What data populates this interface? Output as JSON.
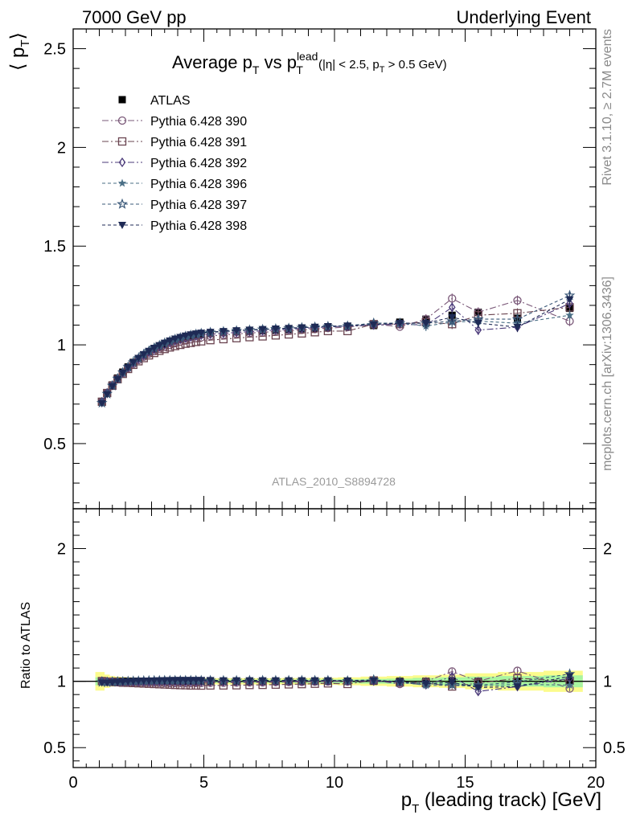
{
  "header": {
    "left": "7000 GeV pp",
    "right": "Underlying Event"
  },
  "side_labels": {
    "rivet": "Rivet 3.1.10, ≥ 2.7M events",
    "mcplots": "mcplots.cern.ch [arXiv:1306.3436]"
  },
  "chart_data": {
    "type": "scatter",
    "title": {
      "main": "Average p",
      "sub_T": "T",
      "vs": " vs p",
      "sup_lead": "lead",
      "sub_T2": "T",
      "cuts_a": "(|η| < 2.5, p",
      "cuts_T": "T",
      "cuts_b": " > 0.5 GeV)"
    },
    "analysis_label": "ATLAS_2010_S8894728",
    "ylabel": {
      "left": "⟨ p",
      "sub": "T",
      "right": "⟩"
    },
    "ratio_ylabel": "Ratio to ATLAS",
    "xlabel": {
      "p": "p",
      "sub": "T",
      "rest": " (leading track) [GeV]"
    },
    "xlim": [
      0,
      20
    ],
    "ylim_main": [
      0.17,
      2.6
    ],
    "ylim_ratio": [
      0.35,
      2.3
    ],
    "main_yticks": [
      "0.5",
      "1",
      "1.5",
      "2",
      "2.5"
    ],
    "ratio_yticks": [
      "0.5",
      "1",
      "2"
    ],
    "xticks": [
      "0",
      "5",
      "10",
      "15",
      "20"
    ],
    "x": [
      1.1,
      1.3,
      1.5,
      1.7,
      1.9,
      2.1,
      2.3,
      2.5,
      2.7,
      2.9,
      3.1,
      3.3,
      3.5,
      3.7,
      3.9,
      4.1,
      4.3,
      4.5,
      4.7,
      4.9,
      5.25,
      5.75,
      6.25,
      6.75,
      7.25,
      7.75,
      8.25,
      8.75,
      9.25,
      9.75,
      10.5,
      11.5,
      12.5,
      13.5,
      14.5,
      15.5,
      17.0,
      19.0
    ],
    "series": [
      {
        "name": "ATLAS",
        "color": "#000000",
        "marker": "filled-square",
        "dash": "none",
        "values": [
          0.711,
          0.758,
          0.797,
          0.832,
          0.862,
          0.888,
          0.911,
          0.931,
          0.949,
          0.965,
          0.979,
          0.992,
          1.003,
          1.013,
          1.022,
          1.03,
          1.037,
          1.043,
          1.048,
          1.052,
          1.057,
          1.062,
          1.066,
          1.069,
          1.072,
          1.075,
          1.078,
          1.081,
          1.084,
          1.087,
          1.092,
          1.098,
          1.115,
          1.13,
          1.15,
          1.165,
          1.135,
          1.185
        ]
      },
      {
        "name": "Pythia 6.428 390",
        "color": "#7a5878",
        "marker": "open-circle",
        "dash": "8,3,2,3",
        "values": [
          0.712,
          0.757,
          0.794,
          0.828,
          0.856,
          0.882,
          0.904,
          0.923,
          0.94,
          0.955,
          0.968,
          0.98,
          0.99,
          0.999,
          1.008,
          1.016,
          1.022,
          1.028,
          1.034,
          1.038,
          1.045,
          1.05,
          1.055,
          1.06,
          1.063,
          1.068,
          1.072,
          1.076,
          1.08,
          1.085,
          1.09,
          1.105,
          1.092,
          1.13,
          1.235,
          1.165,
          1.225,
          1.12
        ]
      },
      {
        "name": "Pythia 6.428 391",
        "color": "#6a4450",
        "marker": "open-square",
        "dash": "8,3,2,3",
        "values": [
          0.712,
          0.756,
          0.793,
          0.826,
          0.853,
          0.878,
          0.899,
          0.917,
          0.933,
          0.947,
          0.959,
          0.97,
          0.979,
          0.987,
          0.994,
          1.0,
          1.006,
          1.01,
          1.015,
          1.018,
          1.024,
          1.029,
          1.034,
          1.039,
          1.043,
          1.048,
          1.053,
          1.058,
          1.064,
          1.07,
          1.07,
          1.105,
          1.105,
          1.115,
          1.105,
          1.15,
          1.16,
          1.19
        ]
      },
      {
        "name": "Pythia 6.428 392",
        "color": "#4b3a7a",
        "marker": "open-diamond",
        "dash": "8,3,2,3",
        "values": [
          0.712,
          0.757,
          0.796,
          0.83,
          0.86,
          0.886,
          0.909,
          0.929,
          0.947,
          0.963,
          0.977,
          0.99,
          1.001,
          1.011,
          1.02,
          1.028,
          1.034,
          1.04,
          1.045,
          1.049,
          1.054,
          1.059,
          1.063,
          1.067,
          1.071,
          1.075,
          1.079,
          1.083,
          1.087,
          1.091,
          1.095,
          1.1,
          1.105,
          1.1,
          1.19,
          1.075,
          1.09,
          1.21
        ]
      },
      {
        "name": "Pythia 6.428 396",
        "color": "#4a6f86",
        "marker": "filled-star",
        "dash": "4,3",
        "values": [
          0.705,
          0.752,
          0.793,
          0.829,
          0.86,
          0.888,
          0.912,
          0.934,
          0.953,
          0.97,
          0.985,
          0.998,
          1.01,
          1.02,
          1.029,
          1.037,
          1.044,
          1.05,
          1.055,
          1.059,
          1.064,
          1.068,
          1.072,
          1.075,
          1.078,
          1.081,
          1.084,
          1.087,
          1.09,
          1.093,
          1.097,
          1.11,
          1.11,
          1.095,
          1.115,
          1.12,
          1.11,
          1.15
        ]
      },
      {
        "name": "Pythia 6.428 397",
        "color": "#3a5878",
        "marker": "open-star",
        "dash": "4,3",
        "values": [
          0.706,
          0.752,
          0.793,
          0.829,
          0.86,
          0.888,
          0.912,
          0.933,
          0.952,
          0.969,
          0.984,
          0.997,
          1.009,
          1.019,
          1.028,
          1.036,
          1.043,
          1.049,
          1.054,
          1.058,
          1.063,
          1.067,
          1.071,
          1.075,
          1.078,
          1.081,
          1.084,
          1.087,
          1.09,
          1.093,
          1.095,
          1.11,
          1.11,
          1.11,
          1.12,
          1.13,
          1.13,
          1.25
        ]
      },
      {
        "name": "Pythia 6.428 398",
        "color": "#1e2a55",
        "marker": "filled-triangle-down",
        "dash": "4,3",
        "values": [
          0.703,
          0.749,
          0.79,
          0.826,
          0.858,
          0.886,
          0.911,
          0.933,
          0.952,
          0.969,
          0.984,
          0.998,
          1.01,
          1.021,
          1.031,
          1.039,
          1.046,
          1.052,
          1.057,
          1.061,
          1.065,
          1.069,
          1.073,
          1.076,
          1.079,
          1.082,
          1.085,
          1.088,
          1.091,
          1.094,
          1.097,
          1.103,
          1.11,
          1.11,
          1.14,
          1.11,
          1.09,
          1.23
        ]
      }
    ],
    "band_inner": [
      0.03,
      0.025,
      0.02,
      0.018,
      0.016,
      0.015,
      0.014,
      0.013,
      0.013,
      0.012,
      0.012,
      0.012,
      0.012,
      0.012,
      0.012,
      0.012,
      0.012,
      0.012,
      0.012,
      0.012,
      0.012,
      0.012,
      0.012,
      0.012,
      0.012,
      0.012,
      0.012,
      0.013,
      0.013,
      0.014,
      0.015,
      0.018,
      0.02,
      0.025,
      0.03,
      0.035,
      0.04,
      0.045
    ],
    "band_outer": [
      0.07,
      0.05,
      0.04,
      0.035,
      0.032,
      0.03,
      0.028,
      0.026,
      0.025,
      0.024,
      0.024,
      0.024,
      0.024,
      0.024,
      0.024,
      0.024,
      0.024,
      0.024,
      0.024,
      0.024,
      0.024,
      0.024,
      0.024,
      0.024,
      0.024,
      0.024,
      0.025,
      0.025,
      0.026,
      0.027,
      0.03,
      0.035,
      0.04,
      0.045,
      0.05,
      0.06,
      0.07,
      0.08
    ],
    "band_colors": {
      "inner": "#a9f5a0",
      "outer": "#fbfb8c"
    }
  }
}
